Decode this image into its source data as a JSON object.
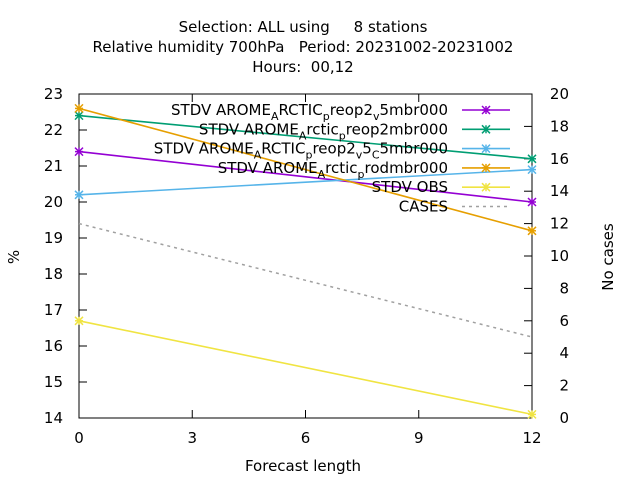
{
  "chart_data": {
    "type": "line",
    "title_lines": [
      "Selection: ALL using     8 stations",
      "Relative humidity 700hPa   Period: 20231002-20231002",
      "Hours:  00,12"
    ],
    "xlabel": "Forecast length",
    "ylabel": "%",
    "y2label": "No cases",
    "xlim": [
      0,
      12
    ],
    "ylim": [
      14,
      23
    ],
    "y2lim": [
      0,
      20
    ],
    "x_ticks": [
      0,
      3,
      6,
      9,
      12
    ],
    "y_ticks": [
      14,
      15,
      16,
      17,
      18,
      19,
      20,
      21,
      22,
      23
    ],
    "y2_ticks": [
      0,
      2,
      4,
      6,
      8,
      10,
      12,
      14,
      16,
      18,
      20
    ],
    "grid": false,
    "legend_position": "top-right",
    "series": [
      {
        "legend": [
          {
            "t": "STDV AROME"
          },
          {
            "t": "A",
            "sub": true
          },
          {
            "t": "RCTIC"
          },
          {
            "t": "p",
            "sub": true
          },
          {
            "t": "reop2"
          },
          {
            "t": "v",
            "sub": true
          },
          {
            "t": "5mbr000"
          }
        ],
        "color": "#9400d3",
        "marker": "x",
        "axis": "y1",
        "dash": false,
        "x": [
          0,
          12
        ],
        "y": [
          21.4,
          20.0
        ]
      },
      {
        "legend": [
          {
            "t": "STDV AROME"
          },
          {
            "t": "A",
            "sub": true
          },
          {
            "t": "rctic"
          },
          {
            "t": "p",
            "sub": true
          },
          {
            "t": "reop2mbr000"
          }
        ],
        "color": "#009e73",
        "marker": "x",
        "axis": "y1",
        "dash": false,
        "x": [
          0,
          12
        ],
        "y": [
          22.4,
          21.2
        ]
      },
      {
        "legend": [
          {
            "t": "STDV AROME"
          },
          {
            "t": "A",
            "sub": true
          },
          {
            "t": "RCTIC"
          },
          {
            "t": "p",
            "sub": true
          },
          {
            "t": "reop2"
          },
          {
            "t": "v",
            "sub": true
          },
          {
            "t": "5"
          },
          {
            "t": "C",
            "sub": true
          },
          {
            "t": "5mbr000"
          }
        ],
        "color": "#56b4e9",
        "marker": "x",
        "axis": "y1",
        "dash": false,
        "x": [
          0,
          12
        ],
        "y": [
          20.2,
          20.9
        ]
      },
      {
        "legend": [
          {
            "t": "STDV AROME"
          },
          {
            "t": "A",
            "sub": true
          },
          {
            "t": "rctic"
          },
          {
            "t": "p",
            "sub": true
          },
          {
            "t": "rodmbr000"
          }
        ],
        "color": "#e69f00",
        "marker": "x",
        "axis": "y1",
        "dash": false,
        "x": [
          0,
          12
        ],
        "y": [
          22.6,
          19.2
        ]
      },
      {
        "legend": [
          {
            "t": "STDV OBS"
          }
        ],
        "color": "#f0e442",
        "marker": "x",
        "axis": "y1",
        "dash": false,
        "x": [
          0,
          12
        ],
        "y": [
          16.7,
          14.1
        ]
      },
      {
        "legend": [
          {
            "t": "CASES"
          }
        ],
        "color": "#a0a0a0",
        "marker": "none",
        "axis": "y2",
        "dash": true,
        "x": [
          0,
          12
        ],
        "y": [
          12,
          5
        ]
      }
    ]
  }
}
